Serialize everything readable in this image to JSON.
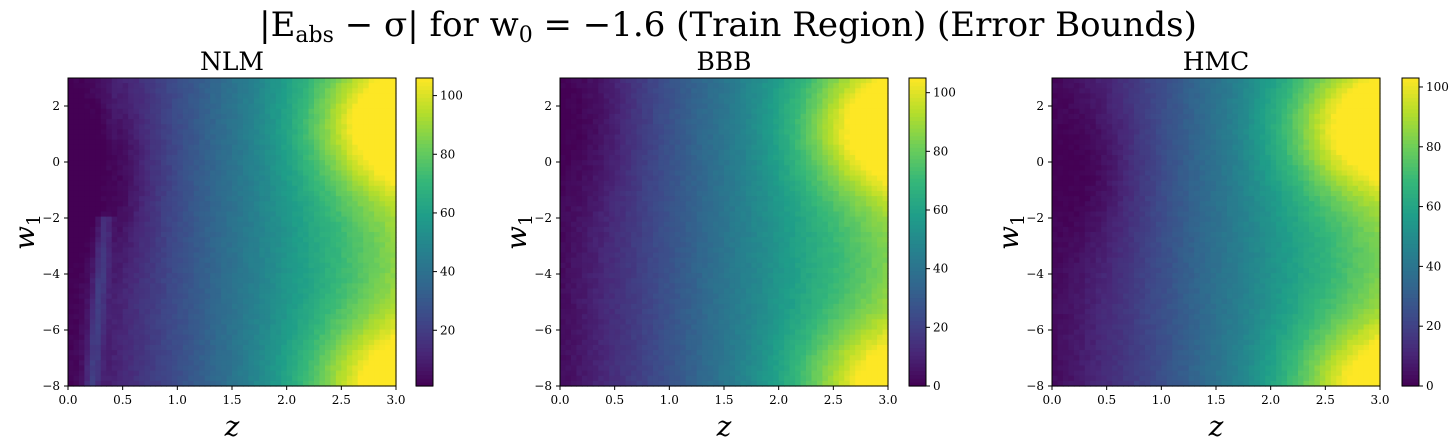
{
  "figure": {
    "suptitle_main": "|E",
    "suptitle_sub": "abs",
    "suptitle_rest": " − σ| for w",
    "suptitle_sub2": "0",
    "suptitle_end": " = −1.6 (Train Region) (Error Bounds)"
  },
  "chart_data": [
    {
      "type": "heatmap",
      "title": "NLM",
      "xlabel": "z",
      "ylabel": "w",
      "ylabel_sub": "1",
      "xlim": [
        0.0,
        3.0
      ],
      "ylim": [
        -8,
        3
      ],
      "xticks": [
        "0.0",
        "0.5",
        "1.0",
        "1.5",
        "2.0",
        "2.5",
        "3.0"
      ],
      "yticks": [
        "2",
        "0",
        "−2",
        "−4",
        "−6",
        "−8"
      ],
      "colorbar": {
        "min": 1,
        "max": 106,
        "ticks": [
          "20",
          "40",
          "60",
          "80",
          "100"
        ],
        "tick_values": [
          20,
          40,
          60,
          80,
          100
        ]
      },
      "colormap": "viridis",
      "grid": false,
      "surface": {
        "base": 2,
        "z_gain": 24,
        "z_power": 1.15,
        "peak_value": 42,
        "peak_z": 3.0,
        "peak_w1": 1.3,
        "low_value": 35,
        "low_w1": -8,
        "trough_depth": 10,
        "trough_z": 0.35,
        "trough_w1": -0.5,
        "near_axis_band": 14
      }
    },
    {
      "type": "heatmap",
      "title": "BBB",
      "xlabel": "z",
      "ylabel": "w",
      "ylabel_sub": "1",
      "xlim": [
        0.0,
        3.0
      ],
      "ylim": [
        -8,
        3
      ],
      "xticks": [
        "0.0",
        "0.5",
        "1.0",
        "1.5",
        "2.0",
        "2.5",
        "3.0"
      ],
      "yticks": [
        "2",
        "0",
        "−2",
        "−4",
        "−6",
        "−8"
      ],
      "colorbar": {
        "min": 0,
        "max": 105,
        "ticks": [
          "0",
          "20",
          "40",
          "60",
          "80",
          "100"
        ],
        "tick_values": [
          0,
          20,
          40,
          60,
          80,
          100
        ]
      },
      "colormap": "viridis",
      "grid": false,
      "surface": {
        "base": 3,
        "z_gain": 24,
        "z_power": 1.1,
        "peak_value": 42,
        "peak_z": 3.0,
        "peak_w1": 1.2,
        "low_value": 33,
        "low_w1": -8,
        "trough_depth": 6,
        "trough_z": 0.3,
        "trough_w1": 1.5,
        "near_axis_band": 0
      }
    },
    {
      "type": "heatmap",
      "title": "HMC",
      "xlabel": "z",
      "ylabel": "w",
      "ylabel_sub": "1",
      "xlim": [
        0.0,
        3.0
      ],
      "ylim": [
        -8,
        3
      ],
      "xticks": [
        "0.0",
        "0.5",
        "1.0",
        "1.5",
        "2.0",
        "2.5",
        "3.0"
      ],
      "yticks": [
        "2",
        "0",
        "−2",
        "−4",
        "−6",
        "−8"
      ],
      "colorbar": {
        "min": 0,
        "max": 103,
        "ticks": [
          "0",
          "20",
          "40",
          "60",
          "80",
          "100"
        ],
        "tick_values": [
          0,
          20,
          40,
          60,
          80,
          100
        ]
      },
      "colormap": "viridis",
      "grid": false,
      "surface": {
        "base": 3,
        "z_gain": 22,
        "z_power": 1.15,
        "peak_value": 42,
        "peak_z": 2.9,
        "peak_w1": 1.2,
        "low_value": 36,
        "low_w1": -8,
        "trough_depth": 8,
        "trough_z": 0.4,
        "trough_w1": -0.3,
        "near_axis_band": 0
      }
    }
  ]
}
